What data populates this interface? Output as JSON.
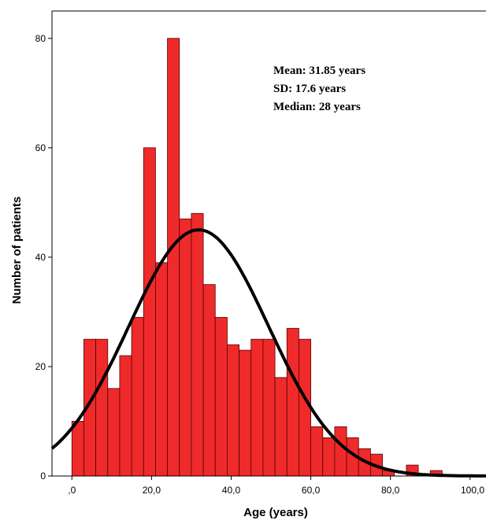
{
  "chart_data": {
    "type": "bar",
    "subtype": "histogram-with-normal-curve",
    "xlabel": "Age (years)",
    "ylabel": "Number of patients",
    "xlim": [
      -5,
      104
    ],
    "ylim": [
      0,
      85
    ],
    "x_ticks": [
      0,
      20,
      40,
      60,
      80,
      100
    ],
    "x_tick_labels": [
      ",0",
      "20,0",
      "40,0",
      "60,0",
      "80,0",
      "100,0"
    ],
    "y_ticks": [
      0,
      20,
      40,
      60,
      80
    ],
    "y_tick_labels": [
      "0",
      "20",
      "40",
      "60",
      "80"
    ],
    "bin_width": 3,
    "bin_starts": [
      0,
      3,
      6,
      9,
      12,
      15,
      18,
      21,
      24,
      27,
      30,
      33,
      36,
      39,
      42,
      45,
      48,
      51,
      54,
      57,
      60,
      63,
      66,
      69,
      72,
      75,
      78,
      81,
      84,
      87,
      90
    ],
    "counts": [
      10,
      25,
      25,
      16,
      22,
      29,
      60,
      39,
      80,
      47,
      48,
      35,
      29,
      24,
      23,
      25,
      25,
      18,
      27,
      25,
      9,
      7,
      9,
      7,
      5,
      4,
      1,
      0,
      2,
      0,
      1
    ],
    "bar_color": "#ee2a2a",
    "bar_stroke": "#5a0000",
    "normal_curve": {
      "mean": 31.85,
      "sd": 17.6,
      "peak": 45,
      "color": "#000000"
    },
    "annotations": [
      "Mean: 31.85 years",
      "SD: 17.6 years",
      "Median: 28 years"
    ],
    "grid": false,
    "legend": "none"
  }
}
